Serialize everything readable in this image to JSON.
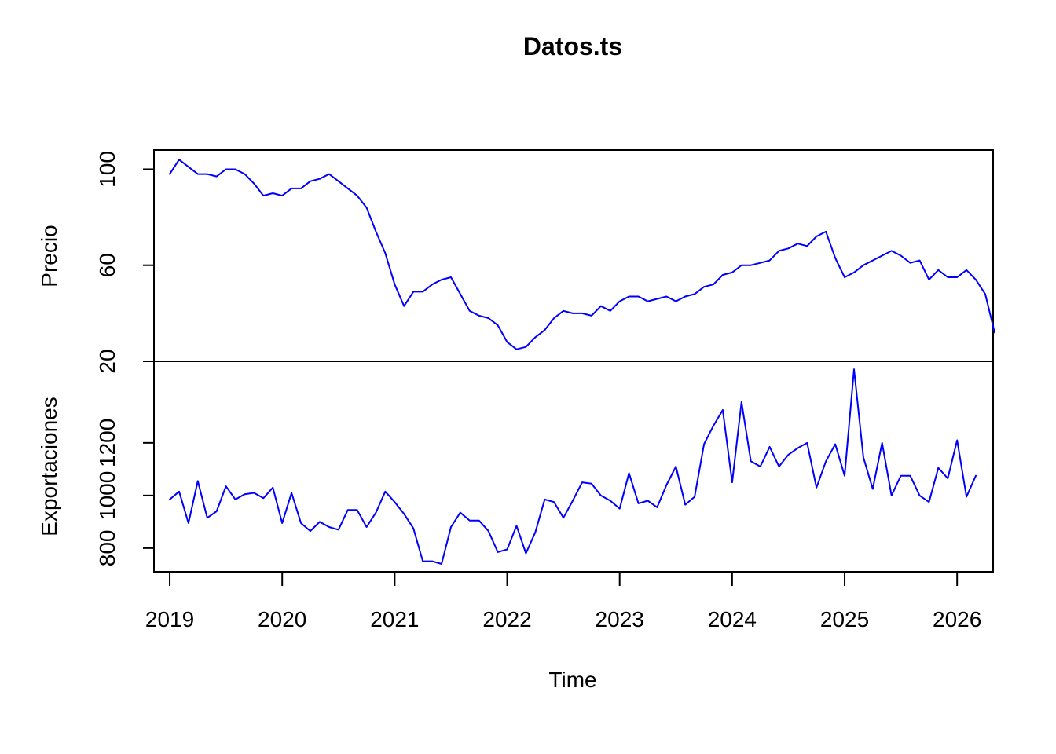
{
  "chart_data": {
    "type": "line",
    "title": "Datos.ts",
    "xlabel": "Time",
    "xlim": [
      2018.86,
      2026.32
    ],
    "x_ticks": [
      2019,
      2020,
      2021,
      2022,
      2023,
      2024,
      2025,
      2026
    ],
    "x_start": 2019,
    "frequency": 12,
    "line_color": "#0000ff",
    "panels": [
      {
        "ylabel": "Precio",
        "ylim": [
          20,
          108
        ],
        "y_ticks": [
          20,
          60,
          100
        ],
        "values": [
          98,
          104,
          101,
          98,
          98,
          97,
          100,
          100,
          98,
          94,
          89,
          90,
          89,
          92,
          92,
          95,
          96,
          98,
          95,
          92,
          89,
          84,
          74,
          65,
          52,
          43,
          49,
          49,
          52,
          54,
          55,
          48,
          41,
          39,
          38,
          35,
          28,
          25,
          26,
          30,
          33,
          38,
          41,
          40,
          40,
          39,
          43,
          41,
          45,
          47,
          47,
          45,
          46,
          47,
          45,
          47,
          48,
          51,
          52,
          56,
          57,
          60,
          60,
          61,
          62,
          66,
          67,
          69,
          68,
          72,
          74,
          63,
          55,
          57,
          60,
          62,
          64,
          66,
          64,
          61,
          62,
          54,
          58,
          55,
          55,
          58,
          54,
          48,
          32
        ]
      },
      {
        "ylabel": "Exportaciones",
        "ylim": [
          710,
          1510
        ],
        "y_ticks": [
          800,
          1000,
          1200
        ],
        "values": [
          985,
          1015,
          895,
          1055,
          915,
          940,
          1035,
          985,
          1005,
          1010,
          990,
          1030,
          895,
          1010,
          895,
          865,
          900,
          880,
          870,
          945,
          945,
          880,
          935,
          1015,
          975,
          930,
          875,
          750,
          750,
          740,
          880,
          935,
          905,
          905,
          865,
          785,
          795,
          885,
          780,
          860,
          985,
          975,
          915,
          980,
          1050,
          1045,
          1000,
          980,
          950,
          1085,
          970,
          980,
          955,
          1040,
          1110,
          965,
          995,
          1195,
          1265,
          1325,
          1050,
          1355,
          1130,
          1110,
          1185,
          1110,
          1155,
          1180,
          1200,
          1030,
          1130,
          1195,
          1075,
          1480,
          1145,
          1025,
          1200,
          1000,
          1075,
          1075,
          1000,
          975,
          1105,
          1065,
          1210,
          995,
          1075
        ]
      }
    ]
  }
}
